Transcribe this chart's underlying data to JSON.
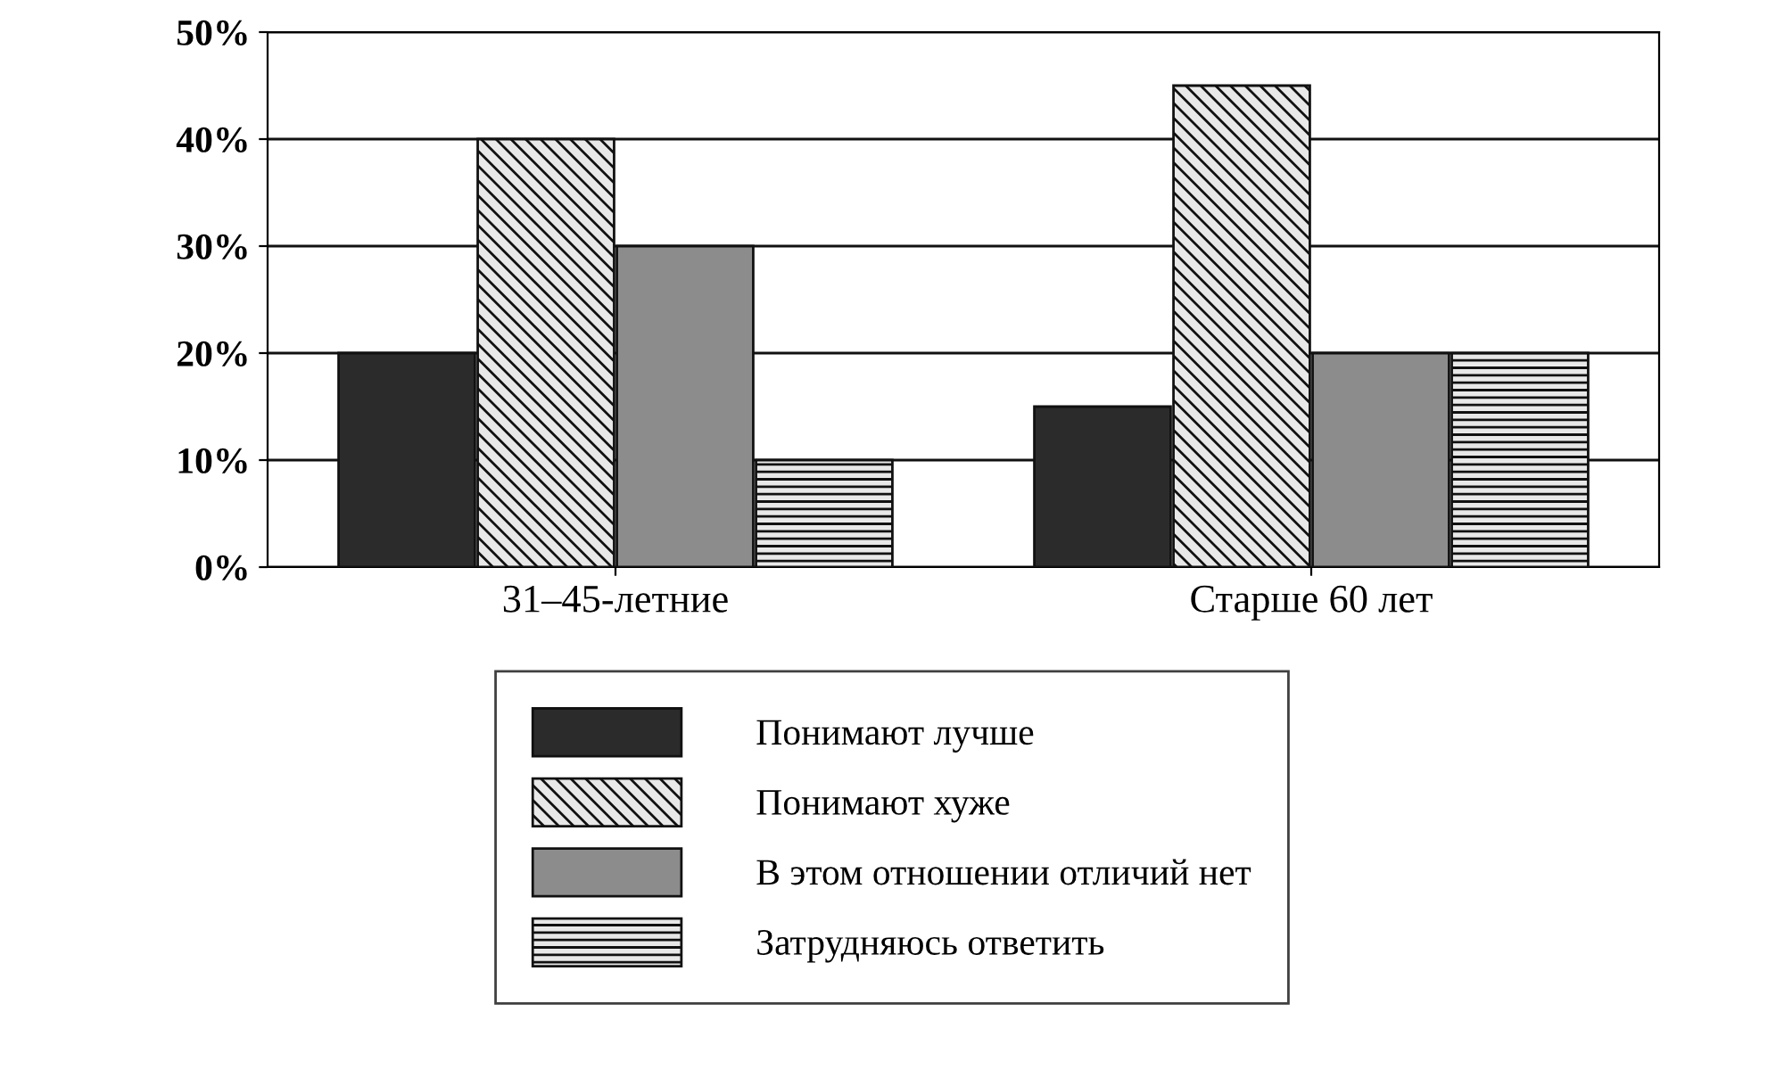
{
  "chart_data": {
    "type": "bar",
    "categories": [
      "31–45-летние",
      "Старше 60 лет"
    ],
    "series": [
      {
        "name": "Понимают лучше",
        "color": "#2b2b2b",
        "values": [
          20,
          15
        ]
      },
      {
        "name": "Понимают хуже",
        "color": "#111111",
        "values": [
          40,
          45
        ]
      },
      {
        "name": "В этом отношении отличий нет",
        "color": "#8c8c8c",
        "values": [
          30,
          20
        ]
      },
      {
        "name": "Затрудняюсь ответить",
        "color": "#111111",
        "values": [
          10,
          20
        ]
      }
    ],
    "ylim": [
      0,
      50
    ],
    "yticks": [
      {
        "value": 0,
        "label": "0%"
      },
      {
        "value": 10,
        "label": "10%"
      },
      {
        "value": 20,
        "label": "20%"
      },
      {
        "value": 30,
        "label": "30%"
      },
      {
        "value": 40,
        "label": "40%"
      },
      {
        "value": 50,
        "label": "50%"
      }
    ],
    "grid": "y",
    "legend": "bottom"
  }
}
